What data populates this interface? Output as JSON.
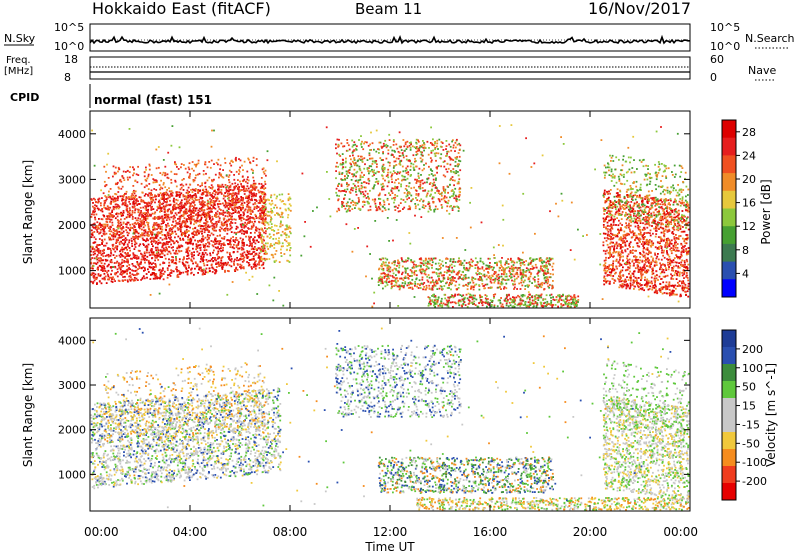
{
  "header": {
    "site": "Hokkaido East (fitACF)",
    "beam": "Beam 11",
    "date": "16/Nov/2017"
  },
  "noise_panel": {
    "left_label": "N.Sky",
    "right_label": "N.Search",
    "left_ticks": [
      "10^5",
      "10^0"
    ],
    "right_ticks": [
      "10^5",
      "10^0"
    ]
  },
  "freq_panel": {
    "left_label_1": "Freq.",
    "left_label_2": "[MHz]",
    "left_ticks": [
      "18",
      "8"
    ],
    "right_label": "Nave",
    "right_ticks": [
      "60",
      "0"
    ]
  },
  "cpid_panel": {
    "label": "CPID",
    "value": "normal (fast) 151"
  },
  "colors": {
    "power_scale": [
      "#0000ff",
      "#2a4fb0",
      "#3c7a50",
      "#46a032",
      "#8cc83c",
      "#e6c83c",
      "#f08c28",
      "#f05020",
      "#e61e1e",
      "#dd0000"
    ],
    "velocity_scale": [
      "#e60000",
      "#f03c1e",
      "#f58c1e",
      "#f0c83c",
      "#c8c8c8",
      "#c8c8c8",
      "#5fc83c",
      "#3c8c3c",
      "#2a4fb0",
      "#1e3c96"
    ]
  },
  "chart_data": [
    {
      "type": "heatmap",
      "name": "power",
      "ylabel": "Slant Range [km]",
      "yticks": [
        1000,
        2000,
        3000,
        4000
      ],
      "ylim": [
        180,
        4500
      ],
      "xlim_hours": [
        0,
        24
      ],
      "colorbar_label": "Power [dB]",
      "colorbar_ticks": [
        "4",
        "8",
        "12",
        "16",
        "20",
        "24",
        "28"
      ],
      "colorbar_range": [
        0,
        30
      ]
    },
    {
      "type": "heatmap",
      "name": "velocity",
      "ylabel": "Slant Range [km]",
      "yticks": [
        1000,
        2000,
        3000,
        4000
      ],
      "ylim": [
        180,
        4500
      ],
      "xlim_hours": [
        0,
        24
      ],
      "colorbar_label": "Velocity [m s^-1]",
      "colorbar_ticks": [
        "-200",
        "-100",
        "-50",
        "-15",
        "15",
        "50",
        "100",
        "200"
      ]
    }
  ],
  "x_axis": {
    "ticks": [
      "00:00",
      "04:00",
      "08:00",
      "12:00",
      "16:00",
      "20:00",
      "00:00"
    ],
    "label": "Time UT"
  }
}
